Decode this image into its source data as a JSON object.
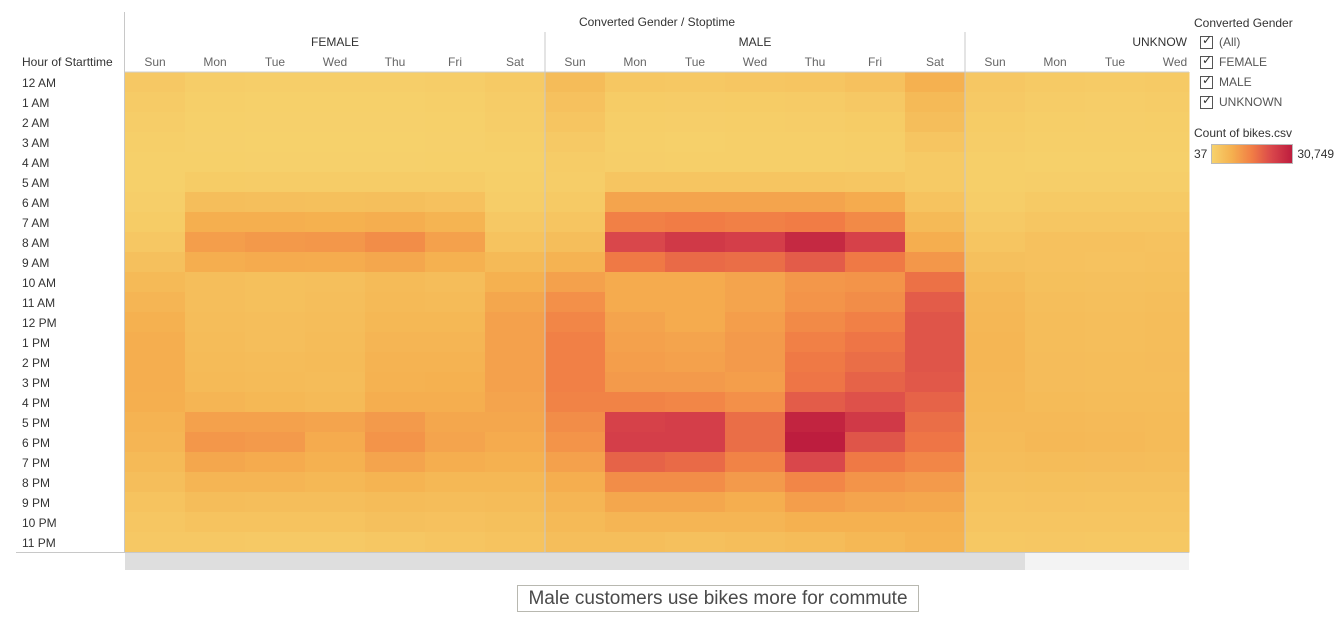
{
  "chart_data": {
    "type": "heatmap",
    "title": "Converted Gender / Stoptime",
    "row_axis_label": "Hour of Starttime",
    "groups": [
      "FEMALE",
      "MALE",
      "UNKNOWN"
    ],
    "group_visible_labels": [
      "FEMALE",
      "MALE",
      "UNKNOW"
    ],
    "days": [
      "Sun",
      "Mon",
      "Tue",
      "Wed",
      "Thu",
      "Fri",
      "Sat"
    ],
    "visible_unknown_days": [
      "Sun",
      "Mon",
      "Tue",
      "Wed"
    ],
    "hours": [
      "12 AM",
      "1 AM",
      "2 AM",
      "3 AM",
      "4 AM",
      "5 AM",
      "6 AM",
      "7 AM",
      "8 AM",
      "9 AM",
      "10 AM",
      "11 AM",
      "12 PM",
      "1 PM",
      "2 PM",
      "3 PM",
      "4 PM",
      "5 PM",
      "6 PM",
      "7 PM",
      "8 PM",
      "9 PM",
      "10 PM",
      "11 PM"
    ],
    "color_min": 37,
    "color_max": 30749,
    "values": {
      "FEMALE": [
        [
          2200,
          1200,
          900,
          900,
          900,
          1200,
          1800
        ],
        [
          1600,
          700,
          600,
          600,
          600,
          700,
          1300
        ],
        [
          1200,
          500,
          400,
          400,
          400,
          500,
          1100
        ],
        [
          800,
          400,
          300,
          300,
          300,
          400,
          800
        ],
        [
          600,
          500,
          400,
          400,
          400,
          500,
          600
        ],
        [
          600,
          1500,
          1400,
          1400,
          1400,
          1300,
          700
        ],
        [
          900,
          4500,
          4300,
          4200,
          4300,
          3800,
          1200
        ],
        [
          1500,
          7800,
          7800,
          7600,
          8000,
          6800,
          2200
        ],
        [
          2500,
          10500,
          11200,
          11500,
          13000,
          10000,
          3500
        ],
        [
          4000,
          8000,
          8500,
          8300,
          9000,
          7500,
          5500
        ],
        [
          5500,
          4500,
          4200,
          4300,
          5200,
          4800,
          7500
        ],
        [
          6500,
          4500,
          4200,
          4500,
          5500,
          5200,
          9000
        ],
        [
          7500,
          4800,
          4500,
          4800,
          6000,
          6000,
          10000
        ],
        [
          8000,
          5000,
          4500,
          5000,
          6500,
          6500,
          10000
        ],
        [
          8000,
          5200,
          5000,
          5200,
          7000,
          7000,
          10000
        ],
        [
          8000,
          5500,
          5300,
          5000,
          7200,
          7500,
          10000
        ],
        [
          7800,
          6500,
          6000,
          5500,
          8000,
          8000,
          9500
        ],
        [
          7000,
          10000,
          10000,
          9500,
          11000,
          9000,
          9000
        ],
        [
          6500,
          11500,
          11000,
          8500,
          12000,
          9500,
          8500
        ],
        [
          5500,
          9000,
          8500,
          7500,
          9500,
          8000,
          7500
        ],
        [
          4500,
          6500,
          6500,
          6000,
          6800,
          6000,
          6000
        ],
        [
          3500,
          4800,
          4500,
          4500,
          5000,
          4800,
          5000
        ],
        [
          2800,
          3500,
          3500,
          3500,
          4000,
          3800,
          4200
        ],
        [
          2200,
          2200,
          2000,
          2000,
          2500,
          3000,
          3500
        ]
      ],
      "MALE": [
        [
          5000,
          2600,
          2400,
          2800,
          3000,
          3800,
          7500
        ],
        [
          3800,
          1500,
          1400,
          1500,
          1600,
          2200,
          5500
        ],
        [
          3000,
          1000,
          900,
          1000,
          1100,
          1500,
          4500
        ],
        [
          2000,
          700,
          600,
          700,
          700,
          1000,
          3000
        ],
        [
          1300,
          900,
          800,
          800,
          800,
          900,
          1800
        ],
        [
          1200,
          3000,
          3000,
          3000,
          3000,
          2800,
          1800
        ],
        [
          1800,
          9500,
          9500,
          9500,
          9500,
          8500,
          3500
        ],
        [
          3000,
          15000,
          15500,
          15000,
          15500,
          13500,
          5500
        ],
        [
          4500,
          23000,
          25500,
          24500,
          28500,
          24000,
          8000
        ],
        [
          7000,
          16000,
          18000,
          17500,
          20000,
          16000,
          11500
        ],
        [
          10000,
          8500,
          8500,
          9500,
          11500,
          12000,
          17000
        ],
        [
          12500,
          8500,
          8500,
          9500,
          12000,
          13000,
          20000
        ],
        [
          14000,
          9500,
          8500,
          10500,
          13500,
          15000,
          21000
        ],
        [
          15000,
          10000,
          9500,
          11000,
          15000,
          16500,
          21000
        ],
        [
          15000,
          10500,
          10000,
          11000,
          16000,
          17500,
          21000
        ],
        [
          15000,
          11000,
          11000,
          10500,
          16500,
          19000,
          20500
        ],
        [
          14500,
          14500,
          14000,
          12500,
          20000,
          21500,
          19000
        ],
        [
          13000,
          24000,
          24500,
          17500,
          29500,
          25500,
          17500
        ],
        [
          12000,
          24500,
          24500,
          17500,
          30700,
          21000,
          16500
        ],
        [
          10000,
          19000,
          18000,
          14500,
          23000,
          16000,
          14000
        ],
        [
          8000,
          13000,
          13000,
          11000,
          14000,
          12000,
          11000
        ],
        [
          6500,
          9000,
          9000,
          8000,
          10500,
          9500,
          9000
        ],
        [
          5500,
          6500,
          6500,
          6500,
          7500,
          7500,
          7500
        ],
        [
          4500,
          4500,
          4000,
          4500,
          5000,
          6000,
          6800
        ]
      ],
      "UNKNOWN": [
        [
          2500,
          1800,
          1700,
          1800
        ],
        [
          2000,
          1300,
          1200,
          1300
        ],
        [
          1500,
          1000,
          900,
          1000
        ],
        [
          1100,
          700,
          700,
          700
        ],
        [
          800,
          600,
          600,
          600
        ],
        [
          800,
          900,
          900,
          900
        ],
        [
          1200,
          1800,
          1800,
          1800
        ],
        [
          2000,
          2800,
          2800,
          2800
        ],
        [
          3000,
          3800,
          3800,
          3600
        ],
        [
          4000,
          3800,
          3600,
          3800
        ],
        [
          5200,
          4200,
          4000,
          4200
        ],
        [
          5800,
          4500,
          4300,
          4500
        ],
        [
          6200,
          4700,
          4500,
          4700
        ],
        [
          6400,
          4800,
          4600,
          4800
        ],
        [
          6300,
          4900,
          4700,
          4900
        ],
        [
          6200,
          4900,
          4800,
          4800
        ],
        [
          6000,
          5200,
          5000,
          5000
        ],
        [
          5600,
          5600,
          5400,
          5200
        ],
        [
          5300,
          5800,
          5600,
          5300
        ],
        [
          4700,
          5000,
          4900,
          4700
        ],
        [
          4000,
          4200,
          4100,
          4000
        ],
        [
          3400,
          3600,
          3500,
          3400
        ],
        [
          2900,
          3000,
          2900,
          2900
        ],
        [
          2400,
          2500,
          2400,
          2400
        ]
      ]
    }
  },
  "legend": {
    "filter_title": "Converted Gender",
    "filter_items": [
      "(All)",
      "FEMALE",
      "MALE",
      "UNKNOWN"
    ],
    "color_title": "Count of bikes.csv",
    "color_min_label": "37",
    "color_max_label": "30,749",
    "colors": [
      "#f6d26c",
      "#f5b04f",
      "#f17d45",
      "#d9464b",
      "#bd1d3e"
    ]
  },
  "caption": "Male customers use bikes more for commute"
}
